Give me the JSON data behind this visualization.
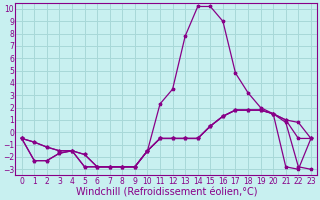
{
  "bg_color": "#c8f0f0",
  "line_color": "#880088",
  "grid_color": "#a8d8d8",
  "xlabel": "Windchill (Refroidissement éolien,°C)",
  "xlim": [
    -0.5,
    23.5
  ],
  "ylim": [
    -3.5,
    10.5
  ],
  "xticks": [
    0,
    1,
    2,
    3,
    4,
    5,
    6,
    7,
    8,
    9,
    10,
    11,
    12,
    13,
    14,
    15,
    16,
    17,
    18,
    19,
    20,
    21,
    22,
    23
  ],
  "yticks": [
    -3,
    -2,
    -1,
    0,
    1,
    2,
    3,
    4,
    5,
    6,
    7,
    8,
    9,
    10
  ],
  "lines": [
    {
      "x": [
        0,
        1,
        2,
        3,
        4,
        5,
        6,
        7,
        8,
        9,
        10,
        11,
        12,
        13,
        14,
        15,
        16,
        17,
        18,
        19,
        20,
        21,
        22,
        23
      ],
      "y": [
        -0.5,
        -2.3,
        -2.3,
        -1.7,
        -1.5,
        -1.8,
        -2.8,
        -2.8,
        -2.8,
        -2.8,
        -1.5,
        2.3,
        3.5,
        7.8,
        10.2,
        10.2,
        9.0,
        4.8,
        3.2,
        2.0,
        1.5,
        0.8,
        -2.8,
        -3.0
      ]
    },
    {
      "x": [
        0,
        1,
        2,
        3,
        4,
        5,
        6,
        7,
        8,
        9,
        10,
        11,
        12,
        13,
        14,
        15,
        16,
        17,
        18,
        19,
        20,
        21,
        22,
        23
      ],
      "y": [
        -0.5,
        -0.8,
        -1.2,
        -1.5,
        -1.5,
        -2.8,
        -2.8,
        -2.8,
        -2.8,
        -2.8,
        -1.5,
        -0.5,
        -0.5,
        -0.5,
        -0.5,
        0.5,
        1.3,
        1.8,
        1.8,
        1.8,
        1.5,
        1.0,
        0.8,
        -0.5
      ]
    },
    {
      "x": [
        0,
        1,
        2,
        3,
        4,
        5,
        6,
        7,
        8,
        9,
        10,
        11,
        12,
        13,
        14,
        15,
        16,
        17,
        18,
        19,
        20,
        21,
        22,
        23
      ],
      "y": [
        -0.5,
        -0.8,
        -1.2,
        -1.5,
        -1.5,
        -2.8,
        -2.8,
        -2.8,
        -2.8,
        -2.8,
        -1.5,
        -0.5,
        -0.5,
        -0.5,
        -0.5,
        0.5,
        1.3,
        1.8,
        1.8,
        1.8,
        1.5,
        1.0,
        -0.5,
        -0.5
      ]
    },
    {
      "x": [
        0,
        1,
        2,
        3,
        4,
        5,
        6,
        7,
        8,
        9,
        10,
        11,
        12,
        13,
        14,
        15,
        16,
        17,
        18,
        19,
        20,
        21,
        22,
        23
      ],
      "y": [
        -0.5,
        -2.3,
        -2.3,
        -1.7,
        -1.5,
        -1.8,
        -2.8,
        -2.8,
        -2.8,
        -2.8,
        -1.5,
        -0.5,
        -0.5,
        -0.5,
        -0.5,
        0.5,
        1.3,
        1.8,
        1.8,
        1.8,
        1.5,
        -2.8,
        -3.0,
        -0.5
      ]
    }
  ],
  "marker_size": 2.5,
  "linewidth": 0.9,
  "xlabel_fontsize": 7,
  "tick_fontsize": 5.5
}
